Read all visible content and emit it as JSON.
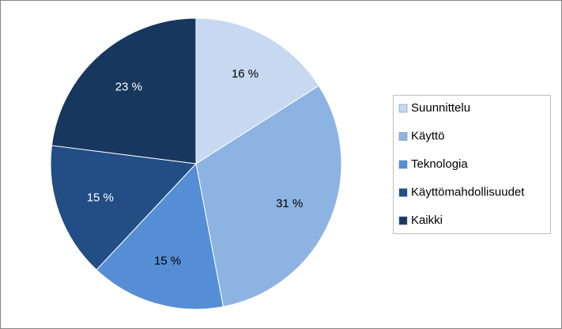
{
  "chart_data": {
    "type": "pie",
    "categories": [
      "Suunnittelu",
      "Käyttö",
      "Teknologia",
      "Käyttömahdollisuudet",
      "Kaikki"
    ],
    "values": [
      16,
      31,
      15,
      15,
      23
    ],
    "value_labels": [
      "16 %",
      "31 %",
      "15 %",
      "15 %",
      "23 %"
    ],
    "colors": [
      "#c6d9f1",
      "#8db3e2",
      "#558ed5",
      "#234d85",
      "#17375e"
    ],
    "legend": "right"
  }
}
